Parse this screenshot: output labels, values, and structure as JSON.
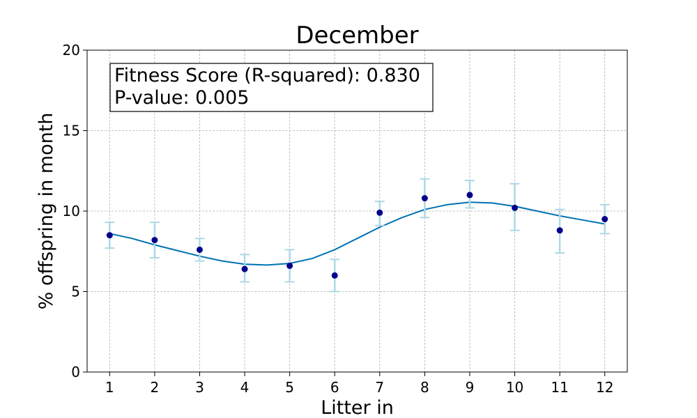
{
  "chart_data": {
    "type": "scatter",
    "title": "December",
    "xlabel": "Litter in",
    "ylabel": "% offspring in month",
    "xlim": [
      0.5,
      12.5
    ],
    "ylim": [
      0,
      20
    ],
    "xticks": [
      "1",
      "2",
      "3",
      "4",
      "5",
      "6",
      "7",
      "8",
      "9",
      "10",
      "11",
      "12"
    ],
    "yticks": [
      "0",
      "5",
      "10",
      "15",
      "20"
    ],
    "grid": true,
    "annotation": {
      "line1": "Fitness Score (R-squared): 0.830",
      "line2": "P-value: 0.005"
    },
    "series": [
      {
        "kind": "points-with-error",
        "x": [
          1,
          2,
          3,
          4,
          5,
          6,
          7,
          8,
          9,
          10,
          11,
          12
        ],
        "y": [
          8.5,
          8.2,
          7.6,
          6.4,
          6.6,
          6.0,
          9.9,
          10.8,
          11.0,
          10.2,
          8.8,
          9.5
        ],
        "err_low": [
          7.7,
          7.1,
          6.9,
          5.6,
          5.6,
          5.0,
          9.1,
          9.6,
          10.2,
          8.8,
          7.4,
          8.6
        ],
        "err_high": [
          9.3,
          9.3,
          8.3,
          7.3,
          7.6,
          7.0,
          10.6,
          12.0,
          11.9,
          11.7,
          10.1,
          10.4
        ],
        "color": "#00008b",
        "error_color": "#add8e6"
      },
      {
        "kind": "fit-line",
        "x": [
          1,
          1.5,
          2,
          2.5,
          3,
          3.5,
          4,
          4.5,
          5,
          5.5,
          6,
          6.5,
          7,
          7.5,
          8,
          8.5,
          9,
          9.5,
          10,
          10.5,
          11,
          11.5,
          12
        ],
        "y": [
          8.6,
          8.3,
          7.9,
          7.55,
          7.2,
          6.9,
          6.7,
          6.65,
          6.75,
          7.05,
          7.6,
          8.3,
          9.0,
          9.6,
          10.1,
          10.4,
          10.55,
          10.5,
          10.3,
          10.0,
          9.7,
          9.45,
          9.2
        ],
        "color": "#0072b2"
      }
    ]
  }
}
